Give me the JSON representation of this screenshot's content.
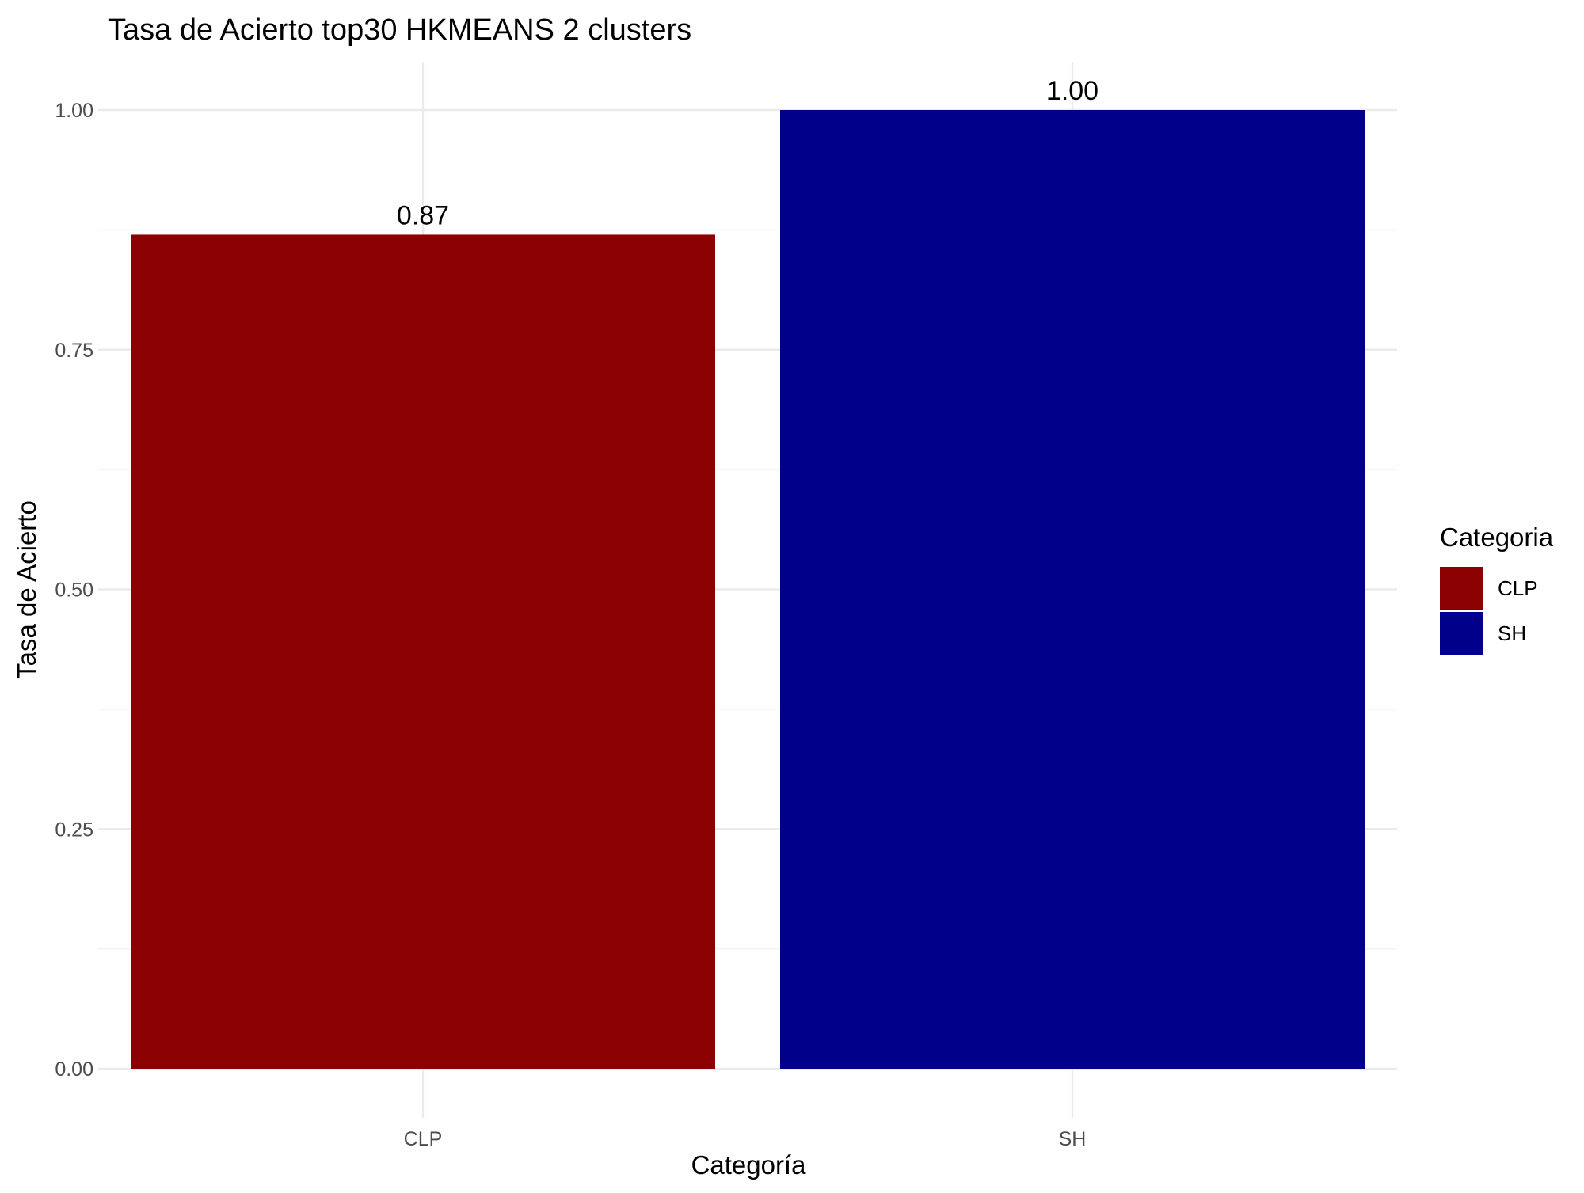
{
  "chart_data": {
    "type": "bar",
    "title": "Tasa de Acierto top30 HKMEANS 2 clusters",
    "xlabel": "Categoría",
    "ylabel": "Tasa de Acierto",
    "categories": [
      "CLP",
      "SH"
    ],
    "values": [
      0.87,
      1.0
    ],
    "data_labels": [
      "0.87",
      "1.00"
    ],
    "colors": [
      "#8B0000",
      "#00008B"
    ],
    "ylim": [
      0,
      1.05
    ],
    "yticks": [
      0,
      0.25,
      0.5,
      0.75,
      1.0
    ],
    "ytick_labels": [
      "0.00",
      "0.25",
      "0.50",
      "0.75",
      "1.00"
    ],
    "grid": true,
    "legend": {
      "title": "Categoria",
      "position": "right",
      "entries": [
        "CLP",
        "SH"
      ]
    }
  }
}
